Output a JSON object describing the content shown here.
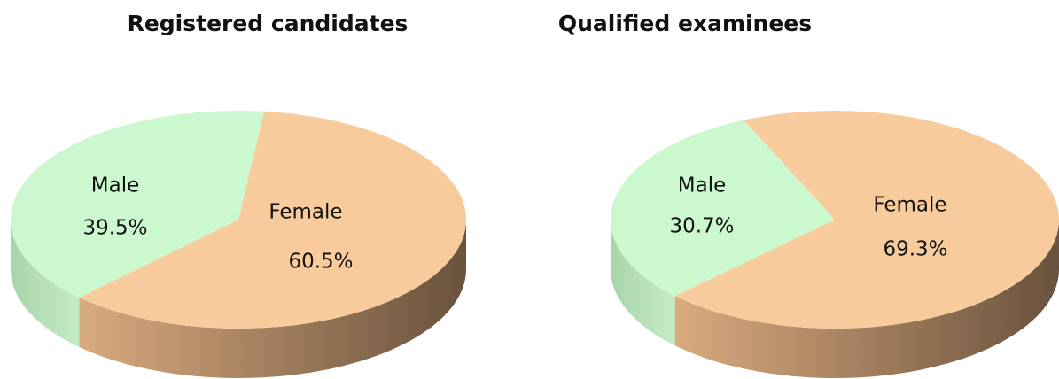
{
  "chart_data": [
    {
      "type": "pie",
      "title": "Registered candidates",
      "categories": [
        "Male",
        "Female"
      ],
      "values": [
        39.5,
        60.5
      ],
      "value_labels": [
        "39.5%",
        "60.5%"
      ],
      "colors": [
        "#ccf8d0",
        "#f8cb9c"
      ]
    },
    {
      "type": "pie",
      "title": "Qualified examinees",
      "categories": [
        "Male",
        "Female"
      ],
      "values": [
        30.7,
        69.3
      ],
      "value_labels": [
        "30.7%",
        "69.3%"
      ],
      "colors": [
        "#ccf8d0",
        "#f8cb9c"
      ]
    }
  ]
}
